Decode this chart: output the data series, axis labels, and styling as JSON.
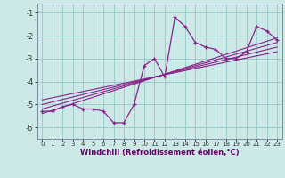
{
  "x_values": [
    0,
    1,
    2,
    3,
    4,
    5,
    6,
    7,
    8,
    9,
    10,
    11,
    12,
    13,
    14,
    15,
    16,
    17,
    18,
    19,
    20,
    21,
    22,
    23
  ],
  "y_main": [
    -5.3,
    -5.3,
    -5.1,
    -5.0,
    -5.2,
    -5.2,
    -5.3,
    -5.8,
    -5.8,
    -5.0,
    -3.3,
    -3.0,
    -3.8,
    -1.2,
    -1.6,
    -2.3,
    -2.5,
    -2.6,
    -3.0,
    -3.0,
    -2.7,
    -1.6,
    -1.8,
    -2.2
  ],
  "bg_color": "#cce9e8",
  "grid_color": "#99cccc",
  "line_color": "#882288",
  "xlabel": "Windchill (Refroidissement éolien,°C)",
  "xlabel_color": "#660066",
  "yticks": [
    -6,
    -5,
    -4,
    -3,
    -2,
    -1
  ],
  "xticks": [
    0,
    1,
    2,
    3,
    4,
    5,
    6,
    7,
    8,
    9,
    10,
    11,
    12,
    13,
    14,
    15,
    16,
    17,
    18,
    19,
    20,
    21,
    22,
    23
  ],
  "ylim": [
    -6.5,
    -0.6
  ],
  "xlim": [
    -0.5,
    23.5
  ],
  "reg_lines": [
    {
      "x": [
        0,
        23
      ],
      "y": [
        -5.4,
        -2.1
      ]
    },
    {
      "x": [
        0,
        23
      ],
      "y": [
        -5.2,
        -2.3
      ]
    },
    {
      "x": [
        0,
        23
      ],
      "y": [
        -5.0,
        -2.5
      ]
    },
    {
      "x": [
        0,
        23
      ],
      "y": [
        -4.8,
        -2.7
      ]
    }
  ]
}
